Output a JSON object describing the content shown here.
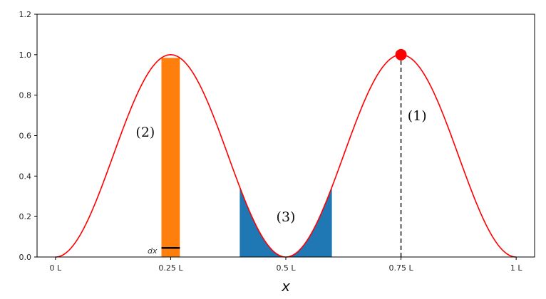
{
  "chart_data": {
    "type": "line",
    "title": "",
    "xlabel": "x",
    "ylabel": "",
    "xlim": [
      -0.04,
      1.04
    ],
    "ylim": [
      0,
      1.2
    ],
    "x_ticks": [
      {
        "value": 0,
        "label": "0 L"
      },
      {
        "value": 0.25,
        "label": "0.25 L"
      },
      {
        "value": 0.5,
        "label": "0.5 L"
      },
      {
        "value": 0.75,
        "label": "0.75 L"
      },
      {
        "value": 1,
        "label": "1 L"
      }
    ],
    "y_ticks": [
      {
        "value": 0.0,
        "label": "0.0"
      },
      {
        "value": 0.2,
        "label": "0.2"
      },
      {
        "value": 0.4,
        "label": "0.4"
      },
      {
        "value": 0.6,
        "label": "0.6"
      },
      {
        "value": 0.8,
        "label": "0.8"
      },
      {
        "value": 1.0,
        "label": "1.0"
      },
      {
        "value": 1.2,
        "label": "1.2"
      }
    ],
    "series": [
      {
        "function": "sin^2(2*pi*x/L)",
        "color": "#ff0000",
        "x_range": [
          0,
          1
        ]
      }
    ],
    "marker_point": {
      "x": 0.75,
      "y": 1.0,
      "color": "#ff0000"
    },
    "dashed_line": {
      "x": 0.75,
      "y_from": 0,
      "y_to": 1.0
    },
    "bar_region": {
      "x_from": 0.23,
      "x_to": 0.27,
      "color": "#ff7f0e"
    },
    "shaded_region": {
      "x_from": 0.4,
      "x_to": 0.6,
      "color": "#1f77b4"
    },
    "dx_marker": {
      "x_from": 0.23,
      "x_to": 0.27,
      "y": 0.045,
      "label": "dx"
    },
    "annotations": [
      {
        "text": "(1)",
        "x": 0.785,
        "y": 0.7
      },
      {
        "text": "(2)",
        "x": 0.195,
        "y": 0.62
      },
      {
        "text": "(3)",
        "x": 0.5,
        "y": 0.2
      }
    ],
    "grid": false,
    "legend": "none"
  }
}
